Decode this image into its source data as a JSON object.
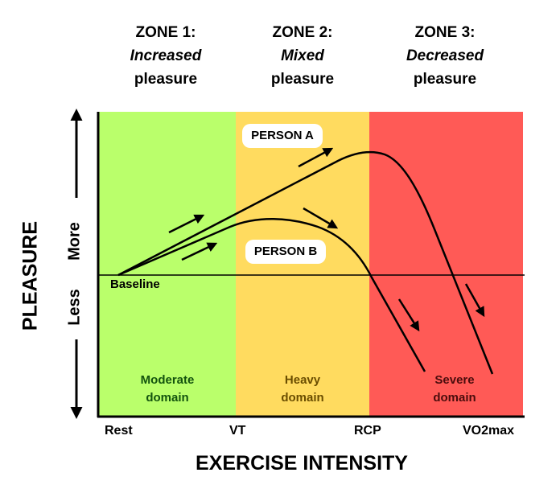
{
  "zones": [
    {
      "name": "ZONE 1:",
      "desc": "Increased",
      "sub": "pleasure"
    },
    {
      "name": "ZONE 2:",
      "desc": "Mixed",
      "sub": "pleasure"
    },
    {
      "name": "ZONE 3:",
      "desc": "Decreased",
      "sub": "pleasure"
    }
  ],
  "domains": [
    {
      "line1": "Moderate",
      "line2": "domain"
    },
    {
      "line1": "Heavy",
      "line2": "domain"
    },
    {
      "line1": "Severe",
      "line2": "domain"
    }
  ],
  "x_ticks": [
    "Rest",
    "VT",
    "RCP",
    "VO2max"
  ],
  "x_axis_label": "EXERCISE INTENSITY",
  "y_axis_label": "PLEASURE",
  "y_more": "More",
  "y_less": "Less",
  "baseline_label": "Baseline",
  "persons": {
    "a": "PERSON A",
    "b": "PERSON B"
  },
  "colors": {
    "zone1": "#baff6b",
    "zone2": "#ffdb5f",
    "zone3": "#ff5a56"
  }
}
